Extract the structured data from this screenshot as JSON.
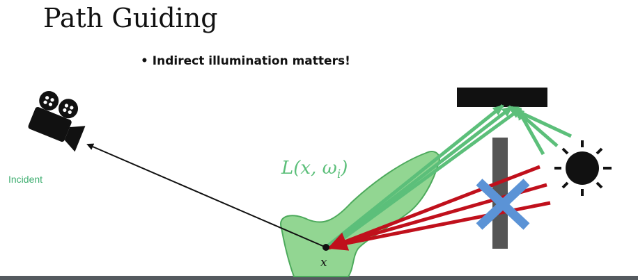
{
  "slide": {
    "title": "Path Guiding",
    "bullet": "• Indirect illumination matters!",
    "side_label": "Incident",
    "radiance_label": "L(x, ω",
    "radiance_subscript": "i",
    "radiance_close": ")",
    "point_label": "x"
  },
  "colors": {
    "guide_green": "#5cbf7a",
    "lobe_fill": "#7fcf7f",
    "ray_red": "#c0101c",
    "blocked_x": "#5b93d6",
    "occluder": "#555555",
    "ceiling": "#111111",
    "ground": "#555a5f"
  },
  "icons": {
    "camera": "movie-camera-icon",
    "light": "sun-icon"
  }
}
